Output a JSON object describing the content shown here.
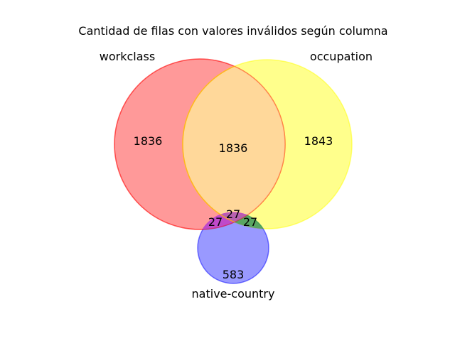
{
  "title": "Cantidad de filas con valores inválidos según columna",
  "colors": {
    "set_a": "#ff0000",
    "set_b": "#ffff00",
    "set_c": "#0000ff",
    "overlap_ab": "#ffd89a",
    "overlap_bc": "#44aa44",
    "overlap_ac": "#cc44cc"
  },
  "sets": {
    "a": "workclass",
    "b": "occupation",
    "c": "native-country"
  },
  "regions": {
    "only_a": "1836",
    "only_b": "1843",
    "only_c": "583",
    "ab": "1836",
    "ac": "27",
    "bc": "27",
    "abc": "27"
  }
}
